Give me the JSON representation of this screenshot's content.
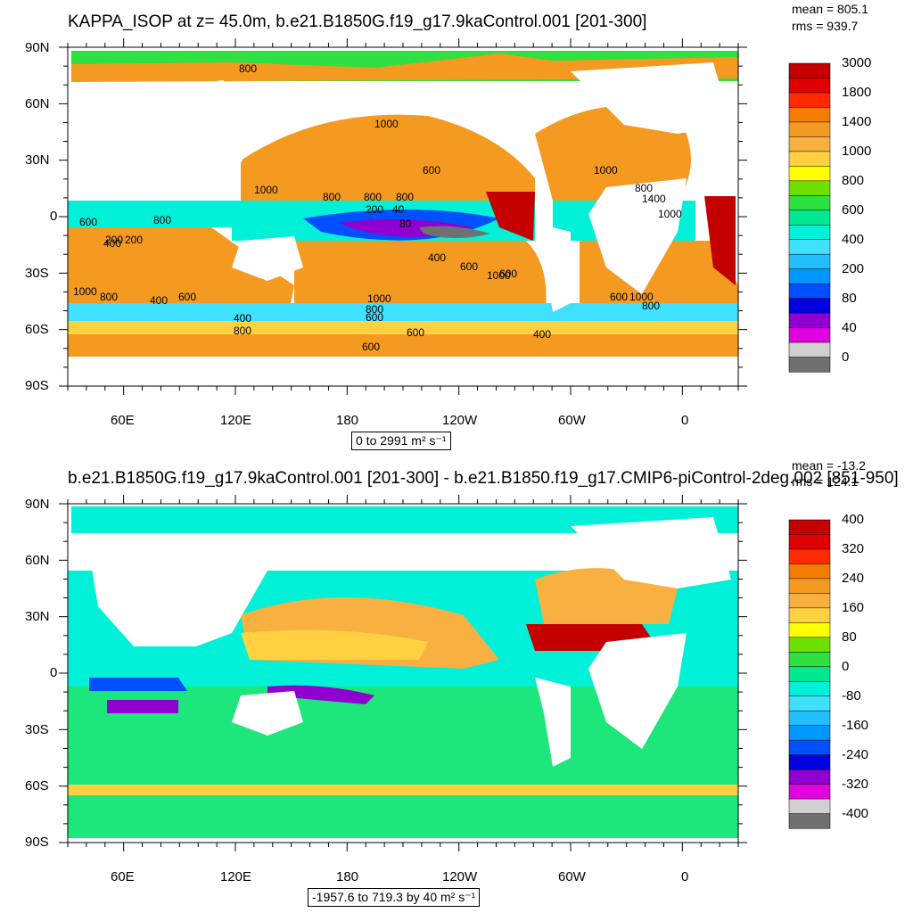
{
  "panel1": {
    "title": "KAPPA_ISOP at z=  45.0m, b.e21.B1850G.f19_g17.9kaControl.001 [201-300]",
    "mean": "mean = 805.1",
    "rms": "rms = 939.7",
    "range_text": "0 to 2991",
    "units": "m² s⁻¹",
    "colorbar_labels": [
      "3000",
      "1800",
      "1400",
      "1000",
      "800",
      "600",
      "400",
      "200",
      "80",
      "40",
      "0"
    ],
    "colorbar_colors": [
      "#c40000",
      "#e00000",
      "#ff2a00",
      "#f47c00",
      "#f59a20",
      "#f8b040",
      "#ffd040",
      "#ffff00",
      "#6ee000",
      "#2ee040",
      "#00e890",
      "#00f0d8",
      "#40e0ff",
      "#20c0ff",
      "#0098ff",
      "#0050ff",
      "#0000e0",
      "#9000d0",
      "#e000e0",
      "#d0d0d0",
      "#707070"
    ],
    "contour_labels": [
      "800",
      "1000",
      "600",
      "1000",
      "800",
      "800",
      "800",
      "200",
      "40",
      "80",
      "200",
      "400",
      "600",
      "1000",
      "600",
      "400",
      "200",
      "800",
      "1000",
      "800",
      "400",
      "600",
      "1000",
      "800",
      "600",
      "400",
      "800",
      "600",
      "400",
      "600",
      "1000",
      "800",
      "600",
      "1000",
      "1400",
      "1000",
      "800",
      "600"
    ]
  },
  "panel2": {
    "title": "b.e21.B1850G.f19_g17.9kaControl.001 [201-300] - b.e21.B1850.f19_g17.CMIP6-piControl-2deg.002 [851-950]",
    "mean": "mean = -13.2",
    "rms": "rms = 124.1",
    "range_text": "-1957.6 to 719.3 by 40",
    "units": "m² s⁻¹",
    "colorbar_labels": [
      "400",
      "320",
      "240",
      "160",
      "80",
      "0",
      "-80",
      "-160",
      "-240",
      "-320",
      "-400"
    ],
    "colorbar_colors": [
      "#c40000",
      "#e00000",
      "#ff2a00",
      "#f47c00",
      "#f59a20",
      "#f8b040",
      "#ffd040",
      "#ffff00",
      "#6ee000",
      "#2ee040",
      "#00e890",
      "#00f0d8",
      "#40e0ff",
      "#20c0ff",
      "#0098ff",
      "#0050ff",
      "#0000e0",
      "#9000d0",
      "#e000e0",
      "#d0d0d0",
      "#707070"
    ]
  },
  "axes": {
    "lat_labels": [
      "90N",
      "60N",
      "30N",
      "0",
      "30S",
      "60S",
      "90S"
    ],
    "lon_labels": [
      "60E",
      "120E",
      "180",
      "120W",
      "60W",
      "0"
    ]
  }
}
